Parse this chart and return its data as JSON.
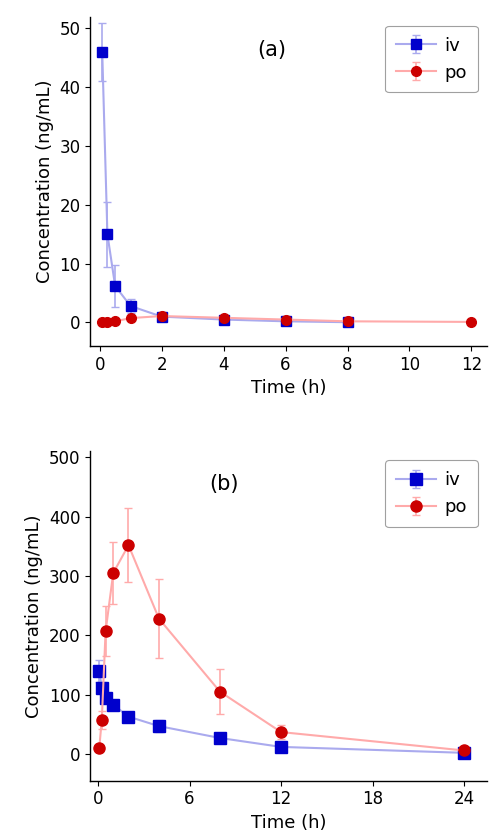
{
  "panel_a": {
    "label": "(a)",
    "iv": {
      "time": [
        0.083,
        0.25,
        0.5,
        1.0,
        2.0,
        4.0,
        6.0,
        8.0
      ],
      "conc": [
        46.0,
        15.0,
        6.2,
        2.8,
        1.0,
        0.5,
        0.2,
        0.05
      ],
      "err": [
        5.0,
        5.5,
        3.5,
        1.2,
        0.3,
        0.25,
        0.1,
        0.05
      ]
    },
    "po": {
      "time": [
        0.083,
        0.25,
        0.5,
        1.0,
        2.0,
        4.0,
        6.0,
        8.0,
        12.0
      ],
      "conc": [
        0.05,
        0.1,
        0.2,
        0.75,
        1.1,
        0.8,
        0.5,
        0.2,
        0.1
      ],
      "err": [
        0.02,
        0.05,
        0.08,
        0.25,
        0.25,
        0.2,
        0.15,
        0.08,
        0.04
      ]
    },
    "ylabel": "Concentration (ng/mL)",
    "xlabel": "Time (h)",
    "xlim": [
      -0.3,
      12.5
    ],
    "ylim": [
      -4,
      52
    ],
    "xticks": [
      0,
      2,
      4,
      6,
      8,
      10,
      12
    ],
    "yticks": [
      0,
      10,
      20,
      30,
      40,
      50
    ]
  },
  "panel_b": {
    "label": "(b)",
    "iv": {
      "time": [
        0.083,
        0.25,
        0.5,
        1.0,
        2.0,
        4.0,
        8.0,
        12.0,
        24.0
      ],
      "conc": [
        140.0,
        112.0,
        95.0,
        83.0,
        63.0,
        47.0,
        27.0,
        12.0,
        2.0
      ],
      "err": [
        18.0,
        10.0,
        8.0,
        8.0,
        7.0,
        10.0,
        5.0,
        4.0,
        1.5
      ]
    },
    "po": {
      "time": [
        0.083,
        0.25,
        0.5,
        1.0,
        2.0,
        4.0,
        8.0,
        12.0,
        24.0
      ],
      "conc": [
        10.0,
        58.0,
        207.0,
        305.0,
        352.0,
        228.0,
        105.0,
        37.0,
        6.0
      ],
      "err": [
        3.0,
        15.0,
        42.0,
        52.0,
        62.0,
        67.0,
        38.0,
        12.0,
        3.0
      ]
    },
    "ylabel": "Concentration (ng/mL)",
    "xlabel": "Time (h)",
    "xlim": [
      -0.5,
      25.5
    ],
    "ylim": [
      -45,
      510
    ],
    "xticks": [
      0,
      6,
      12,
      18,
      24
    ],
    "yticks": [
      0,
      100,
      200,
      300,
      400,
      500
    ]
  },
  "iv_line_color": "#aaaaee",
  "iv_marker_color": "#0000cc",
  "po_line_color": "#ffaaaa",
  "po_marker_color": "#cc0000",
  "marker_iv": "s",
  "marker_po": "o",
  "marker_size": 7,
  "marker_size_b": 8,
  "line_width": 1.5,
  "capsize": 3,
  "elinewidth": 1.2,
  "legend_fontsize": 13,
  "axis_label_fontsize": 13,
  "tick_fontsize": 12,
  "label_fontsize": 15
}
